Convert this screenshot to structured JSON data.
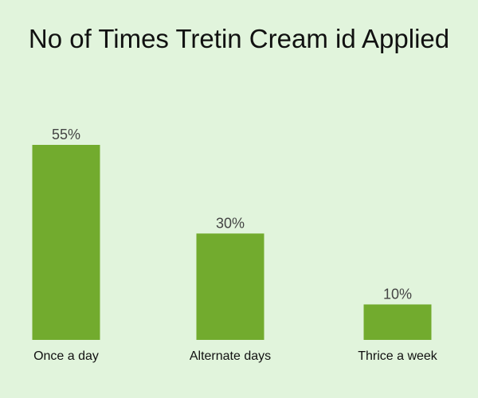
{
  "colors": {
    "background": "#e1f4dc",
    "bar": "#72ab2e"
  },
  "chart_data": {
    "type": "bar",
    "title": "No of Times Tretin Cream id Applied",
    "categories": [
      "Once a day",
      "Alternate days",
      "Thrice a week"
    ],
    "values": [
      55,
      30,
      10
    ],
    "data_labels": [
      "55%",
      "30%",
      "10%"
    ],
    "unit": "%",
    "xlabel": "",
    "ylabel": "",
    "ylim": [
      0,
      55
    ],
    "grid": false,
    "legend": "none"
  }
}
